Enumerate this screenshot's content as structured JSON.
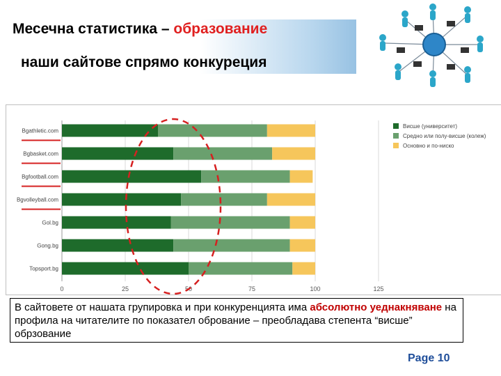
{
  "header": {
    "title_black": "Месечна статистика – ",
    "title_red": "образование",
    "subtitle": "наши сайтове спрямо конкуреция"
  },
  "chart_data": {
    "type": "bar",
    "orientation": "horizontal",
    "stacked": true,
    "categories": [
      "Bgathletic.com",
      "Bgbasket.com",
      "Bgfootball.com",
      "Bgvolleyball.com",
      "Gol.bg",
      "Gong.bg",
      "Topsport.bg"
    ],
    "series": [
      {
        "name": "Висше (университет)",
        "color": "#1e6b2b",
        "values": [
          38,
          44,
          55,
          47,
          43,
          44,
          50
        ]
      },
      {
        "name": "Средно или полу-висше (колеж)",
        "color": "#6aa06e",
        "values": [
          43,
          39,
          35,
          34,
          47,
          46,
          41
        ]
      },
      {
        "name": "Основно и по-ниско",
        "color": "#f6c65b",
        "values": [
          19,
          17,
          9,
          19,
          10,
          10,
          9
        ]
      }
    ],
    "xticks": [
      0,
      25,
      50,
      75,
      100,
      125
    ],
    "xlim": [
      0,
      125
    ],
    "grid": true,
    "legend_position": "right"
  },
  "annotation": {
    "text_1": "В сайтовете от нашата групировка и при конкуренцията има ",
    "text_red_1": "абсолютно уеднакняване",
    "text_2": " на  профила на читателите по показател обрование – преобладава степента “висше” обрзование"
  },
  "footer": {
    "page_label": "Page 10"
  },
  "colors": {
    "accent_red": "#e02020",
    "page_blue": "#1f4e9a",
    "marker_red": "#d62020"
  }
}
